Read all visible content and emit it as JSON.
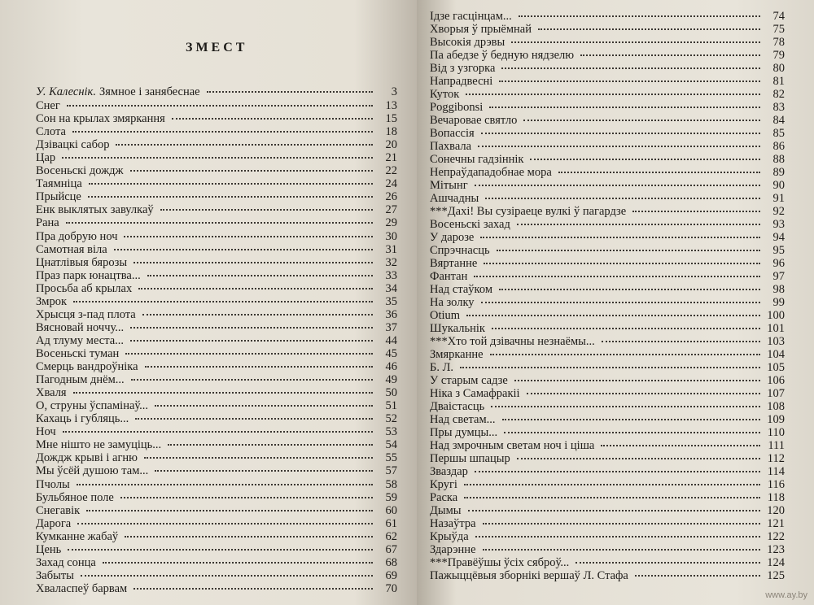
{
  "left": {
    "title": "ЗМЕСТ",
    "heading": {
      "author": "У. Калеснік.",
      "title": "Зямное і занябеснае",
      "page": "3"
    },
    "entries": [
      {
        "title": "Снег",
        "page": "13"
      },
      {
        "title": "Сон на крылах змяркання",
        "page": "15"
      },
      {
        "title": "Слота",
        "page": "18"
      },
      {
        "title": "Дзівацкі сабор",
        "page": "20"
      },
      {
        "title": "Цар",
        "page": "21"
      },
      {
        "title": "Восеньскі дождж",
        "page": "22"
      },
      {
        "title": "Таямніца",
        "page": "24"
      },
      {
        "title": "Прыйсце",
        "page": "26"
      },
      {
        "title": "Енк выклятых завулкаў",
        "page": "27"
      },
      {
        "title": "Рана",
        "page": "29"
      },
      {
        "title": "Пра добрую ноч",
        "page": "30"
      },
      {
        "title": "Самотная віла",
        "page": "31"
      },
      {
        "title": "Цнатлівыя бярозы",
        "page": "32"
      },
      {
        "title": "Праз парк юнацтва...",
        "page": "33"
      },
      {
        "title": "Просьба аб крылах",
        "page": "34"
      },
      {
        "title": "Змрок",
        "page": "35"
      },
      {
        "title": "Хрысця з-пад плота",
        "page": "36"
      },
      {
        "title": "Вясновай ноччу...",
        "page": "37"
      },
      {
        "title": "Ад тлуму места...",
        "page": "44"
      },
      {
        "title": "Восеньскі туман",
        "page": "45"
      },
      {
        "title": "Смерць вандроўніка",
        "page": "46"
      },
      {
        "title": "Пагодным днём...",
        "page": "49"
      },
      {
        "title": "Хваля",
        "page": "50"
      },
      {
        "title": "О, струны ўспамінаў...",
        "page": "51"
      },
      {
        "title": "Кахаць і губляць...",
        "page": "52"
      },
      {
        "title": "Ноч",
        "page": "53"
      },
      {
        "title": "Мне нішто не замуціць...",
        "page": "54"
      },
      {
        "title": "Дождж крыві і агню",
        "page": "55"
      },
      {
        "title": "Мы ўсёй душою там...",
        "page": "57"
      },
      {
        "title": "Пчолы",
        "page": "58"
      },
      {
        "title": "Бульбяное поле",
        "page": "59"
      },
      {
        "title": "Снегавік",
        "page": "60"
      },
      {
        "title": "Дарога",
        "page": "61"
      },
      {
        "title": "Кумканне жабаў",
        "page": "62"
      },
      {
        "title": "Цень",
        "page": "67"
      },
      {
        "title": "Захад сонца",
        "page": "68"
      },
      {
        "title": "Забыты",
        "page": "69"
      },
      {
        "title": "Хваласпеў барвам",
        "page": "70"
      }
    ]
  },
  "right": {
    "entries": [
      {
        "title": "Ідзе гасцінцам...",
        "page": "74"
      },
      {
        "title": "Хворыя ў прыёмнай",
        "page": "75"
      },
      {
        "title": "Высокія дрэвы",
        "page": "78"
      },
      {
        "title": "Па абедзе ў бедную нядзелю",
        "page": "79"
      },
      {
        "title": "Від з узгорка",
        "page": "80"
      },
      {
        "title": "Напрадвесні",
        "page": "81"
      },
      {
        "title": "Куток",
        "page": "82"
      },
      {
        "title": "Poggibonsi",
        "page": "83"
      },
      {
        "title": "Вечаровае святло",
        "page": "84"
      },
      {
        "title": "Вопассія",
        "page": "85"
      },
      {
        "title": "Пахвала",
        "page": "86"
      },
      {
        "title": "Сонечны гадзіннік",
        "page": "88"
      },
      {
        "title": "Непраўдападобнае мора",
        "page": "89"
      },
      {
        "title": "Мітынг",
        "page": "90"
      },
      {
        "title": "Ашчадны",
        "page": "91"
      },
      {
        "title": "***Дахі! Вы сузіраеце вулкі ў пагардзе",
        "page": "92"
      },
      {
        "title": "Восеньскі захад",
        "page": "93"
      },
      {
        "title": "У дарозе",
        "page": "94"
      },
      {
        "title": "Спрэчнасць",
        "page": "95"
      },
      {
        "title": "Вяртанне",
        "page": "96"
      },
      {
        "title": "Фантан",
        "page": "97"
      },
      {
        "title": "Над стаўком",
        "page": "98"
      },
      {
        "title": "На золку",
        "page": "99"
      },
      {
        "title": "Otium",
        "page": "100"
      },
      {
        "title": "Шукальнік",
        "page": "101"
      },
      {
        "title": "***Хто той дзівачны незнаёмы...",
        "page": "103"
      },
      {
        "title": "Змярканне",
        "page": "104"
      },
      {
        "title": "Б. Л.",
        "page": "105"
      },
      {
        "title": "У старым садзе",
        "page": "106"
      },
      {
        "title": "Ніка з Самафракіі",
        "page": "107"
      },
      {
        "title": "Дваістасць",
        "page": "108"
      },
      {
        "title": "Над светам...",
        "page": "109"
      },
      {
        "title": "Пры думцы...",
        "page": "110"
      },
      {
        "title": "Над змрочным светам ноч і ціша",
        "page": "111"
      },
      {
        "title": "Першы шпацыр",
        "page": "112"
      },
      {
        "title": "Зваздар",
        "page": "114"
      },
      {
        "title": "Кругі",
        "page": "116"
      },
      {
        "title": "Раска",
        "page": "118"
      },
      {
        "title": "Дымы",
        "page": "120"
      },
      {
        "title": "Назаўтра",
        "page": "121"
      },
      {
        "title": "Крыўда",
        "page": "122"
      },
      {
        "title": "Здарэнне",
        "page": "123"
      },
      {
        "title": "***Правёўшы ўсіх сяброў...",
        "page": "124"
      },
      {
        "title": "Пажыццёвыя зборнікі вершаў Л. Стафа",
        "page": "125"
      }
    ]
  },
  "watermark": "www.ay.by"
}
